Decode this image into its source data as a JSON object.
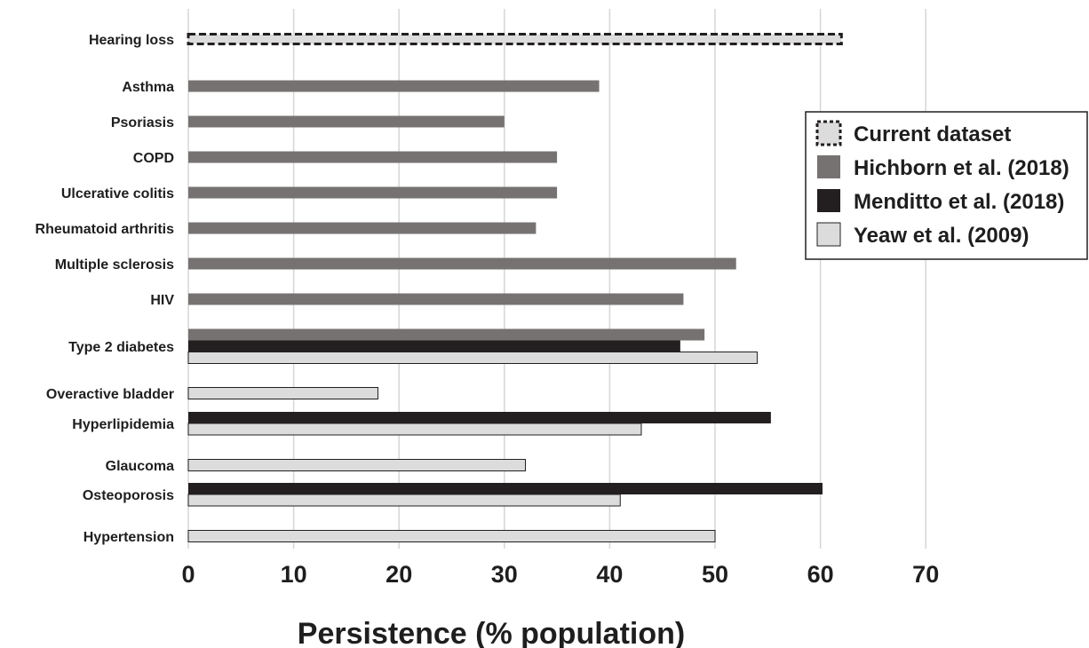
{
  "chart_data": {
    "type": "bar",
    "orientation": "horizontal",
    "xlabel": "Persistence (% population)",
    "xlim": [
      0,
      70
    ],
    "xticks": [
      0,
      10,
      20,
      30,
      40,
      50,
      60,
      70
    ],
    "grid": "vertical",
    "legend_position": "right",
    "categories": [
      "Hearing loss",
      "Asthma",
      "Psoriasis",
      "COPD",
      "Ulcerative colitis",
      "Rheumatoid arthritis",
      "Multiple sclerosis",
      "HIV",
      "Type 2 diabetes",
      "Overactive bladder",
      "Hyperlipidemia",
      "Glaucoma",
      "Osteoporosis",
      "Hypertension"
    ],
    "series": [
      {
        "name": "Current dataset",
        "color": "#dcdcdc",
        "style": "dotted-outline",
        "values": [
          62,
          null,
          null,
          null,
          null,
          null,
          null,
          null,
          null,
          null,
          null,
          null,
          null,
          null
        ]
      },
      {
        "name": "Hichborn et al. (2018)",
        "color": "#767272",
        "values": [
          null,
          39,
          30,
          35,
          35,
          33,
          52,
          47,
          49,
          null,
          null,
          null,
          null,
          null
        ]
      },
      {
        "name": "Menditto et al. (2018)",
        "color": "#231f20",
        "values": [
          null,
          null,
          null,
          null,
          null,
          null,
          null,
          null,
          46.7,
          null,
          55.3,
          null,
          60.2,
          null
        ]
      },
      {
        "name": "Yeaw et al. (2009)",
        "color": "#dcdcdc",
        "values": [
          null,
          null,
          null,
          null,
          null,
          null,
          null,
          null,
          54,
          18,
          43,
          32,
          41,
          50
        ]
      }
    ]
  }
}
